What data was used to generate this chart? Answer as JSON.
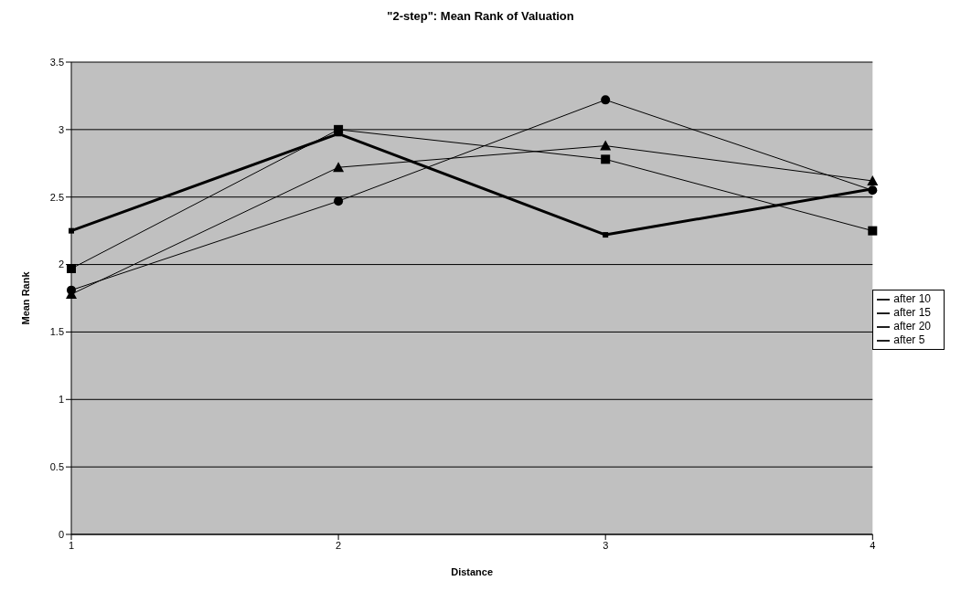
{
  "chart_data": {
    "type": "line",
    "title": "\"2-step\": Mean Rank of Valuation",
    "xlabel": "Distance",
    "ylabel": "Mean Rank",
    "categories": [
      "1",
      "2",
      "3",
      "4"
    ],
    "series": [
      {
        "name": "after 5",
        "color": "#000000",
        "marker": "square",
        "values": [
          2.25,
          2.97,
          2.22,
          2.56
        ]
      },
      {
        "name": "after 10",
        "color": "#000000",
        "marker": "square",
        "values": [
          1.97,
          3.0,
          2.78,
          2.25
        ]
      },
      {
        "name": "after 15",
        "color": "#000000",
        "marker": "triangle",
        "values": [
          1.78,
          2.72,
          2.88,
          2.62
        ]
      },
      {
        "name": "after 20",
        "color": "#000000",
        "marker": "circle",
        "values": [
          1.81,
          2.47,
          3.22,
          2.55
        ]
      }
    ],
    "ylim": [
      0,
      3.5
    ],
    "yticks": [
      0,
      0.5,
      1,
      1.5,
      2,
      2.5,
      3,
      3.5
    ],
    "grid": "y",
    "legend": "right"
  }
}
